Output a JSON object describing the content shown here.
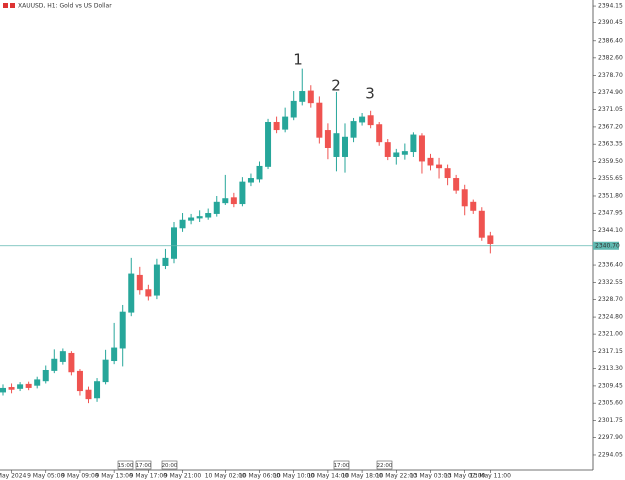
{
  "chart_data": {
    "type": "candlestick",
    "title": "XAUUSD, H1:  Gold vs US Dollar",
    "categories": [
      null,
      "May 2024",
      null,
      null,
      null,
      "9 May 05:00",
      null,
      null,
      null,
      "9 May 09:00",
      null,
      null,
      null,
      "9 May 13:00",
      null,
      null,
      null,
      "9 May 17:00",
      null,
      null,
      null,
      "9 May 21:00",
      null,
      null,
      null,
      null,
      "10 May 02:00",
      null,
      null,
      null,
      "10 May 06:00",
      null,
      null,
      null,
      "10 May 10:00",
      null,
      null,
      null,
      "10 May 14:00",
      null,
      null,
      null,
      "10 May 18:00",
      null,
      null,
      null,
      "10 May 22:00",
      null,
      null,
      null,
      "13 May 03:00",
      null,
      null,
      null,
      "13 May 07:00",
      null,
      null,
      "13 May 11:00"
    ],
    "open": [
      2308.0,
      2309.2,
      2308.8,
      2309.9,
      2309.5,
      2310.5,
      2312.8,
      2314.8,
      2316.8,
      2312.8,
      2308.6,
      2306.7,
      2310.3,
      2315.0,
      2317.8,
      2325.8,
      2334.2,
      2331.0,
      2329.6,
      2336.2,
      2337.8,
      2344.6,
      2346.3,
      2346.8,
      2347.0,
      2347.8,
      2350.2,
      2351.5,
      2350.0,
      2354.8,
      2355.5,
      2358.3,
      2368.3,
      2366.6,
      2369.3,
      2372.8,
      2375.3,
      2372.6,
      2366.5,
      2360.5,
      2360.5,
      2364.8,
      2368.2,
      2369.8,
      2367.8,
      2363.8,
      2360.5,
      2361.0,
      2361.6,
      2365.3,
      2360.3,
      2358.8,
      2358.0,
      2355.8,
      2353.3,
      2350.5,
      2348.5,
      2343.0
    ],
    "high": [
      2309.8,
      2310.0,
      2310.3,
      2310.4,
      2311.5,
      2314.0,
      2317.6,
      2317.8,
      2317.2,
      2313.2,
      2309.3,
      2311.2,
      2317.5,
      2323.5,
      2327.5,
      2338.0,
      2336.0,
      2332.0,
      2337.8,
      2340.0,
      2346.0,
      2348.0,
      2347.8,
      2348.6,
      2349.0,
      2351.8,
      2356.5,
      2352.5,
      2356.0,
      2356.8,
      2359.5,
      2369.0,
      2369.5,
      2371.5,
      2375.2,
      2380.2,
      2376.5,
      2374.0,
      2368.0,
      2375.0,
      2368.0,
      2369.2,
      2370.3,
      2370.8,
      2368.3,
      2364.5,
      2362.3,
      2363.5,
      2366.0,
      2365.8,
      2361.2,
      2360.3,
      2358.8,
      2356.5,
      2354.3,
      2351.0,
      2349.3,
      2343.8
    ],
    "low": [
      2307.3,
      2307.8,
      2308.3,
      2308.5,
      2308.9,
      2310.0,
      2312.3,
      2314.2,
      2311.8,
      2307.3,
      2305.6,
      2305.9,
      2309.8,
      2314.3,
      2313.8,
      2325.0,
      2329.8,
      2328.5,
      2328.8,
      2335.5,
      2336.8,
      2343.8,
      2345.5,
      2346.0,
      2346.5,
      2347.2,
      2349.8,
      2349.3,
      2349.5,
      2354.0,
      2354.8,
      2357.8,
      2365.8,
      2366.0,
      2368.7,
      2372.0,
      2371.5,
      2363.5,
      2360.0,
      2357.3,
      2357.0,
      2363.8,
      2367.5,
      2366.9,
      2363.0,
      2359.8,
      2358.8,
      2359.9,
      2360.5,
      2356.8,
      2357.5,
      2355.7,
      2354.2,
      2352.3,
      2347.5,
      2347.8,
      2341.8,
      2339.0
    ],
    "close": [
      2309.0,
      2308.6,
      2309.8,
      2309.0,
      2310.9,
      2313.0,
      2315.5,
      2317.2,
      2312.5,
      2308.3,
      2306.5,
      2310.5,
      2315.3,
      2318.0,
      2326.0,
      2334.5,
      2330.8,
      2329.4,
      2336.5,
      2338.0,
      2344.8,
      2346.5,
      2347.0,
      2347.3,
      2348.0,
      2350.5,
      2351.3,
      2350.0,
      2355.0,
      2355.8,
      2358.5,
      2368.3,
      2366.5,
      2369.5,
      2373.0,
      2375.2,
      2372.5,
      2364.8,
      2362.5,
      2365.8,
      2365.0,
      2368.5,
      2369.5,
      2367.6,
      2363.8,
      2360.5,
      2361.5,
      2361.8,
      2365.5,
      2359.5,
      2358.6,
      2358.0,
      2355.8,
      2353.0,
      2349.5,
      2348.5,
      2342.5,
      2341.1
    ],
    "up_color": "#26a69a",
    "down_color": "#ef5350",
    "ylim": [
      2290.7,
      2395.5
    ],
    "yticks": [
      2394.15,
      2390.45,
      {
        "value": 2386.4,
        "label": "2386.40"
      },
      {
        "value": 2382.6,
        "label": "2382.60"
      },
      {
        "value": 2378.7,
        "label": "2378.70"
      },
      {
        "value": 2374.9,
        "label": "2374.90"
      },
      2371.05,
      {
        "value": 2367.2,
        "label": "2367.20"
      },
      2363.35,
      {
        "value": 2359.5,
        "label": "2359.50"
      },
      2355.65,
      {
        "value": 2351.8,
        "label": "2351.80"
      },
      2347.95,
      {
        "value": 2344.1,
        "label": "2344.10"
      },
      {
        "value": 2336.4,
        "label": "2336.40"
      },
      2332.55,
      {
        "value": 2328.7,
        "label": "2328.70"
      },
      {
        "value": 2324.8,
        "label": "2324.80"
      },
      {
        "value": 2321,
        "label": "2321.00"
      },
      2317.15,
      {
        "value": 2313.3,
        "label": "2313.30"
      },
      2309.45,
      {
        "value": 2305.6,
        "label": "2305.60"
      },
      2301.75,
      {
        "value": 2297.9,
        "label": "2297.90"
      },
      2294.05
    ],
    "current_price": {
      "value": 2340.7,
      "label": "2340.70"
    },
    "price_line_color": "#5fb8b0",
    "time_markers": [
      "15:00",
      "17:00",
      "20:00",
      "17:00",
      "22:00"
    ],
    "annotations": [
      "1",
      "2",
      "3"
    ],
    "annotation_color": "#e53935"
  }
}
